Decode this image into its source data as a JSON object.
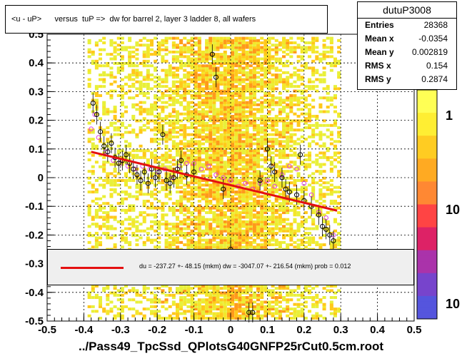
{
  "title": "<u - uP>      versus  tuP =>  dw for barrel 2, layer 3 ladder 8, all wafers",
  "x_axis_title": "../Pass49_TpcSsd_QPlotsG40GNFP25rCut0.5cm.root",
  "stats": {
    "name": "dutuP3008",
    "rows": [
      {
        "key": "Entries",
        "value": "28368"
      },
      {
        "key": "Mean x",
        "value": "-0.0354"
      },
      {
        "key": "Mean y",
        "value": "0.002819"
      },
      {
        "key": "RMS x",
        "value": "0.154"
      },
      {
        "key": "RMS y",
        "value": "0.2874"
      }
    ]
  },
  "fit_text": "du = -237.27 +- 48.15 (mkm) dw = -3047.07 +- 216.54 (mkm) prob = 0.012",
  "colors": {
    "fit_line": "#e41010",
    "profile_black": "#000000",
    "profile_magenta": "#e040e0"
  },
  "chart_data": {
    "type": "heatmap",
    "xlim": [
      -0.5,
      0.5
    ],
    "ylim": [
      -0.5,
      0.5
    ],
    "x_ticks": [
      "-0.5",
      "-0.4",
      "-0.3",
      "-0.2",
      "-0.1",
      "0",
      "0.1",
      "0.2",
      "0.3",
      "0.4",
      "0.5"
    ],
    "y_ticks": [
      "-0.5",
      "-0.4",
      "-0.3",
      "-0.2",
      "-0.1",
      "0",
      "0.1",
      "0.2",
      "0.3",
      "0.4",
      "0.5"
    ],
    "x_tick_values": [
      -0.5,
      -0.4,
      -0.3,
      -0.2,
      -0.1,
      0,
      0.1,
      0.2,
      0.3,
      0.4,
      0.5
    ],
    "y_tick_values": [
      -0.5,
      -0.4,
      -0.3,
      -0.2,
      -0.1,
      0,
      0.1,
      0.2,
      0.3,
      0.4,
      0.5
    ],
    "grid": true,
    "z_scale_labels": [
      "1",
      "10",
      "10"
    ],
    "fit_line": {
      "x": [
        -0.38,
        0.29
      ],
      "y": [
        0.09,
        -0.115
      ]
    },
    "profile_black": {
      "x": [
        -0.375,
        -0.365,
        -0.355,
        -0.345,
        -0.335,
        -0.325,
        -0.315,
        -0.305,
        -0.295,
        -0.285,
        -0.275,
        -0.265,
        -0.255,
        -0.245,
        -0.235,
        -0.225,
        -0.215,
        -0.205,
        -0.195,
        -0.185,
        -0.175,
        -0.165,
        -0.155,
        -0.145,
        -0.135,
        -0.12,
        -0.1,
        -0.05,
        -0.04,
        -0.02,
        0.0,
        0.05,
        0.06,
        0.08,
        0.1,
        0.11,
        0.12,
        0.14,
        0.15,
        0.16,
        0.18,
        0.19,
        0.2,
        0.22,
        0.24,
        0.25,
        0.26,
        0.27,
        0.28
      ],
      "y": [
        0.26,
        0.22,
        0.16,
        0.11,
        0.09,
        0.12,
        0.07,
        0.05,
        0.06,
        0.08,
        0.05,
        0.03,
        0.01,
        -0.01,
        0.02,
        -0.02,
        0.03,
        0.0,
        0.02,
        0.15,
        -0.01,
        -0.02,
        0.0,
        0.03,
        0.06,
        0.01,
        0.02,
        0.43,
        0.35,
        -0.04,
        -0.25,
        -0.47,
        -0.47,
        -0.01,
        0.1,
        0.04,
        0.02,
        0.0,
        -0.04,
        -0.05,
        -0.06,
        0.08,
        -0.08,
        -0.1,
        -0.13,
        -0.17,
        -0.18,
        -0.2,
        -0.22
      ]
    },
    "profile_magenta": {
      "x": [
        -0.38,
        -0.37,
        -0.36,
        -0.34,
        -0.32,
        -0.3,
        -0.28,
        -0.26,
        -0.24,
        -0.22,
        -0.2,
        -0.18,
        -0.16,
        -0.14,
        -0.12,
        -0.1,
        -0.08,
        -0.06,
        -0.04,
        -0.02,
        0.0,
        0.02,
        0.04,
        0.06,
        0.08,
        0.1,
        0.12,
        0.14,
        0.16,
        0.18,
        0.2,
        0.22,
        0.24,
        0.26,
        0.28
      ],
      "y": [
        0.17,
        0.22,
        0.14,
        0.09,
        0.06,
        0.05,
        0.04,
        0.03,
        0.04,
        0.03,
        0.02,
        0.03,
        0.0,
        0.04,
        0.05,
        0.05,
        0.03,
        0.04,
        0.01,
        0.0,
        -0.01,
        -0.03,
        -0.02,
        -0.04,
        -0.02,
        -0.01,
        -0.03,
        0.01,
        0.04,
        0.03,
        -0.02,
        -0.06,
        -0.12,
        -0.14,
        -0.2
      ]
    }
  }
}
